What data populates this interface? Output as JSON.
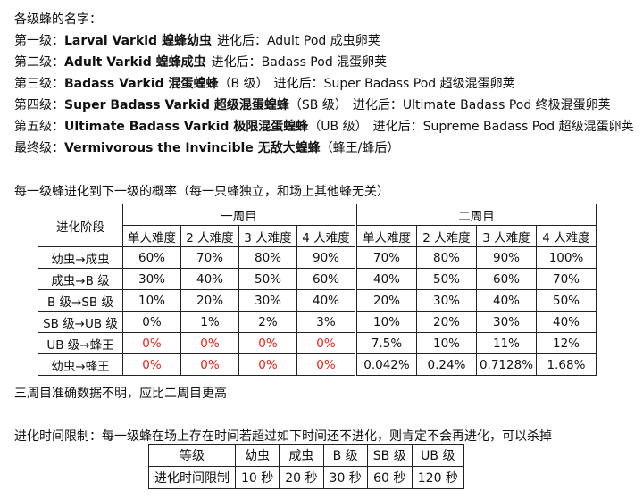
{
  "heading": "各级蜂的名字：",
  "levels": [
    {
      "prefix": "第一级：",
      "name": "Larval Varkid 蝗蜂幼虫",
      "evolve": "进化后：Adult Pod 成虫卵荚"
    },
    {
      "prefix": "第二级：",
      "name": "Adult Varkid 蝗蜂成虫",
      "evolve": "进化后：Badass Pod 混蛋卵荚"
    },
    {
      "prefix": "第三级：",
      "name": "Badass Varkid 混蛋蝗蜂",
      "rank": "（B 级）",
      "evolve": "进化后：Super Badass Pod 超级混蛋卵荚"
    },
    {
      "prefix": "第四级：",
      "name": "Super Badass Varkid 超级混蛋蝗蜂",
      "rank": "（SB 级）",
      "evolve": "进化后：Ultimate Badass Pod 终极混蛋卵荚"
    },
    {
      "prefix": "第五级：",
      "name": "Ultimate Badass Varkid 极限混蛋蝗蜂",
      "rank": "（UB 级）",
      "evolve": "进化后：Supreme Badass Pod 超级混蛋卵荚"
    },
    {
      "prefix": "最终级：",
      "name": "Vermivorous the Invincible 无敌大蝗蜂",
      "rank": "（蜂王/蜂后）",
      "evolve": ""
    }
  ],
  "prob_title": "每一级蜂进化到下一级的概率（每一只蜂独立，和场上其他蜂无关）",
  "prob_table": {
    "stage_header": "进化阶段",
    "group1": "一周目",
    "group2": "二周目",
    "difficulties": [
      "单人难度",
      "2 人难度",
      "3 人难度",
      "4 人难度"
    ],
    "rows": [
      {
        "stage": "幼虫→成虫",
        "g1": [
          "60%",
          "70%",
          "80%",
          "90%"
        ],
        "g2": [
          "70%",
          "80%",
          "90%",
          "100%"
        ],
        "red": false
      },
      {
        "stage": "成虫→B 级",
        "g1": [
          "30%",
          "40%",
          "50%",
          "60%"
        ],
        "g2": [
          "40%",
          "50%",
          "60%",
          "70%"
        ],
        "red": false
      },
      {
        "stage": "B 级→SB 级",
        "g1": [
          "10%",
          "20%",
          "30%",
          "40%"
        ],
        "g2": [
          "20%",
          "30%",
          "40%",
          "50%"
        ],
        "red": false
      },
      {
        "stage": "SB 级→UB 级",
        "g1": [
          "0%",
          "1%",
          "2%",
          "3%"
        ],
        "g2": [
          "10%",
          "20%",
          "30%",
          "40%"
        ],
        "red": false
      },
      {
        "stage": "UB 级→蜂王",
        "g1": [
          "0%",
          "0%",
          "0%",
          "0%"
        ],
        "g2": [
          "7.5%",
          "10%",
          "11%",
          "12%"
        ],
        "red": true
      },
      {
        "stage": "幼虫→蜂王",
        "g1": [
          "0%",
          "0%",
          "0%",
          "0%"
        ],
        "g2": [
          "0.042%",
          "0.24%",
          "0.7128%",
          "1.68%"
        ],
        "red": true
      }
    ],
    "red_color": "#e8241b"
  },
  "note": "三周目准确数据不明，应比二周目更高",
  "time_title": "进化时间限制：每一级蜂在场上存在时间若超过如下时间还不进化，则肯定不会再进化，可以杀掉",
  "time_table": {
    "header": [
      "等级",
      "幼虫",
      "成虫",
      "B 级",
      "SB 级",
      "UB 级"
    ],
    "values": [
      "进化时间限制",
      "10 秒",
      "20 秒",
      "30 秒",
      "60 秒",
      "120 秒"
    ]
  }
}
